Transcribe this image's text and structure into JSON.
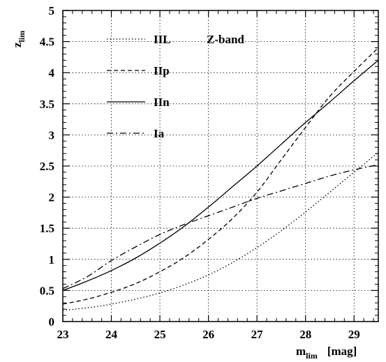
{
  "chart_data": {
    "type": "line",
    "title": "",
    "xlabel": {
      "main": "m",
      "sub": "lim",
      "unit": "[mag]"
    },
    "ylabel": {
      "main": "z",
      "sub": "lim"
    },
    "xlim": [
      23,
      29.5
    ],
    "ylim": [
      0,
      5
    ],
    "x_ticks": [
      "23",
      "24",
      "25",
      "26",
      "27",
      "28",
      "29"
    ],
    "y_ticks": [
      "0",
      "0.5",
      "1",
      "1.5",
      "2",
      "2.5",
      "3",
      "3.5",
      "4",
      "4.5",
      "5"
    ],
    "grid": true,
    "legend_position": "upper-left",
    "annotations": [
      {
        "text": "Z-band"
      }
    ],
    "series": [
      {
        "name": "IIL",
        "style": "dotted",
        "x": [
          23,
          23.5,
          24,
          24.5,
          25,
          25.5,
          26,
          26.5,
          27,
          27.5,
          28,
          28.5,
          29,
          29.5
        ],
        "y": [
          0.18,
          0.22,
          0.28,
          0.36,
          0.46,
          0.59,
          0.75,
          0.95,
          1.19,
          1.46,
          1.76,
          2.08,
          2.4,
          2.72
        ]
      },
      {
        "name": "IIp",
        "style": "dashed",
        "x": [
          23,
          23.5,
          24,
          24.5,
          25,
          25.5,
          26,
          26.5,
          27,
          27.5,
          28,
          28.5,
          29,
          29.5
        ],
        "y": [
          0.28,
          0.36,
          0.47,
          0.61,
          0.8,
          1.03,
          1.32,
          1.66,
          2.08,
          2.6,
          3.12,
          3.62,
          4.02,
          4.4
        ]
      },
      {
        "name": "IIn",
        "style": "solid",
        "x": [
          23,
          23.5,
          24,
          24.5,
          25,
          25.5,
          26,
          26.5,
          27,
          27.5,
          28,
          28.5,
          29,
          29.5
        ],
        "y": [
          0.5,
          0.65,
          0.82,
          1.02,
          1.26,
          1.53,
          1.84,
          2.17,
          2.5,
          2.85,
          3.2,
          3.53,
          3.87,
          4.2
        ]
      },
      {
        "name": "Ia",
        "style": "dash-dot",
        "x": [
          23,
          23.5,
          24,
          24.5,
          25,
          25.5,
          26,
          26.5,
          27,
          27.5,
          28,
          28.5,
          29,
          29.5
        ],
        "y": [
          0.53,
          0.72,
          0.98,
          1.2,
          1.4,
          1.56,
          1.7,
          1.84,
          1.98,
          2.1,
          2.22,
          2.34,
          2.44,
          2.52
        ]
      }
    ]
  }
}
